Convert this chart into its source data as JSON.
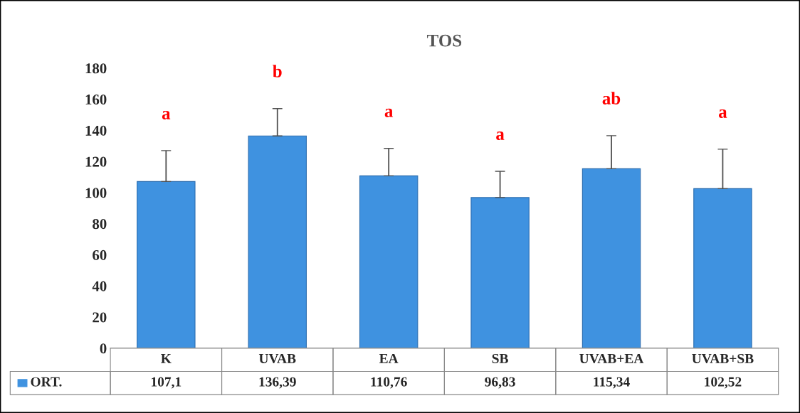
{
  "chart_data": {
    "type": "bar",
    "title": "TOS",
    "categories": [
      "K",
      "UVAB",
      "EA",
      "SB",
      "UVAB+EA",
      "UVAB+SB"
    ],
    "series": [
      {
        "name": "ORT.",
        "color": "#3f92e0",
        "values": [
          107.1,
          136.39,
          110.76,
          96.83,
          115.34,
          102.52
        ],
        "errors": [
          [
            107.1,
            127
          ],
          [
            136.39,
            154
          ],
          [
            110.76,
            128.4
          ],
          [
            96.83,
            113.7
          ],
          [
            115.34,
            136.6
          ],
          [
            102.52,
            127.9
          ]
        ],
        "value_labels": [
          "107,1",
          "136,39",
          "110,76",
          "96,83",
          "115,34",
          "102,52"
        ]
      }
    ],
    "ylim": [
      0,
      180
    ],
    "yticks": [
      0,
      20,
      40,
      60,
      80,
      100,
      120,
      140,
      160,
      180
    ],
    "grid": false,
    "legend": "bottom",
    "annotations": [
      "a",
      "b",
      "a",
      "a",
      "ab",
      "a"
    ]
  }
}
